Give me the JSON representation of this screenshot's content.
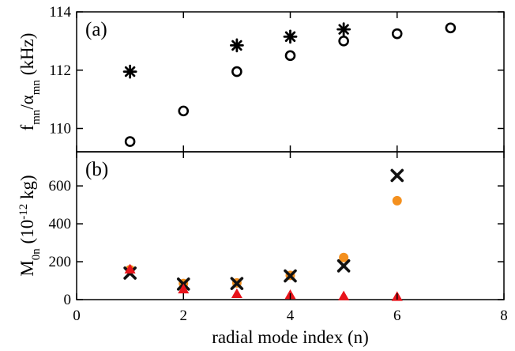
{
  "chart_data": [
    {
      "type": "scatter",
      "panel_label": "(a)",
      "ylabel": "f_mn/α_mn (kHz)",
      "ylabel_main": "f",
      "ylabel_sub1": "mn",
      "ylabel_mid": "/α",
      "ylabel_sub2": "mn",
      "ylabel_unit": " (kHz)",
      "xlim": [
        0,
        8
      ],
      "ylim": [
        109.2,
        114
      ],
      "yticks": [
        110,
        112,
        114
      ],
      "ytick_labels": [
        "110",
        "112",
        "114"
      ],
      "series": [
        {
          "marker": "asterisk",
          "x": [
            1,
            3,
            4,
            5
          ],
          "y": [
            111.95,
            112.85,
            113.15,
            113.4
          ]
        },
        {
          "marker": "open-circle",
          "x": [
            1,
            2,
            3,
            4,
            5,
            6,
            7
          ],
          "y": [
            109.55,
            110.6,
            111.95,
            112.5,
            113.0,
            113.25,
            113.45
          ]
        }
      ]
    },
    {
      "type": "scatter",
      "panel_label": "(b)",
      "ylabel": "M_0n (10^-12 kg)",
      "ylabel_main": "M",
      "ylabel_sub1": "0n",
      "ylabel_mid": " (10",
      "ylabel_sup": "-12",
      "ylabel_unit": " kg)",
      "xlabel": "radial mode index (n)",
      "xlim": [
        0,
        8
      ],
      "ylim": [
        0,
        780
      ],
      "xticks": [
        0,
        2,
        4,
        6,
        8
      ],
      "xtick_labels": [
        "0",
        "2",
        "4",
        "6",
        "8"
      ],
      "yticks": [
        0,
        200,
        400,
        600
      ],
      "ytick_labels": [
        "0",
        "200",
        "400",
        "600"
      ],
      "series": [
        {
          "marker": "filled-circle",
          "color": "#f4901e",
          "x": [
            1,
            2,
            3,
            4,
            5,
            6
          ],
          "y": [
            158,
            85,
            88,
            128,
            222,
            522
          ]
        },
        {
          "marker": "cross",
          "color": "#111111",
          "x": [
            1,
            2,
            3,
            4,
            5,
            6
          ],
          "y": [
            140,
            82,
            85,
            125,
            178,
            655
          ]
        },
        {
          "marker": "triangle",
          "color": "#e8141b",
          "x": [
            1,
            2,
            3,
            4,
            5,
            6
          ],
          "y": [
            160,
            55,
            30,
            25,
            18,
            15
          ]
        }
      ]
    }
  ]
}
